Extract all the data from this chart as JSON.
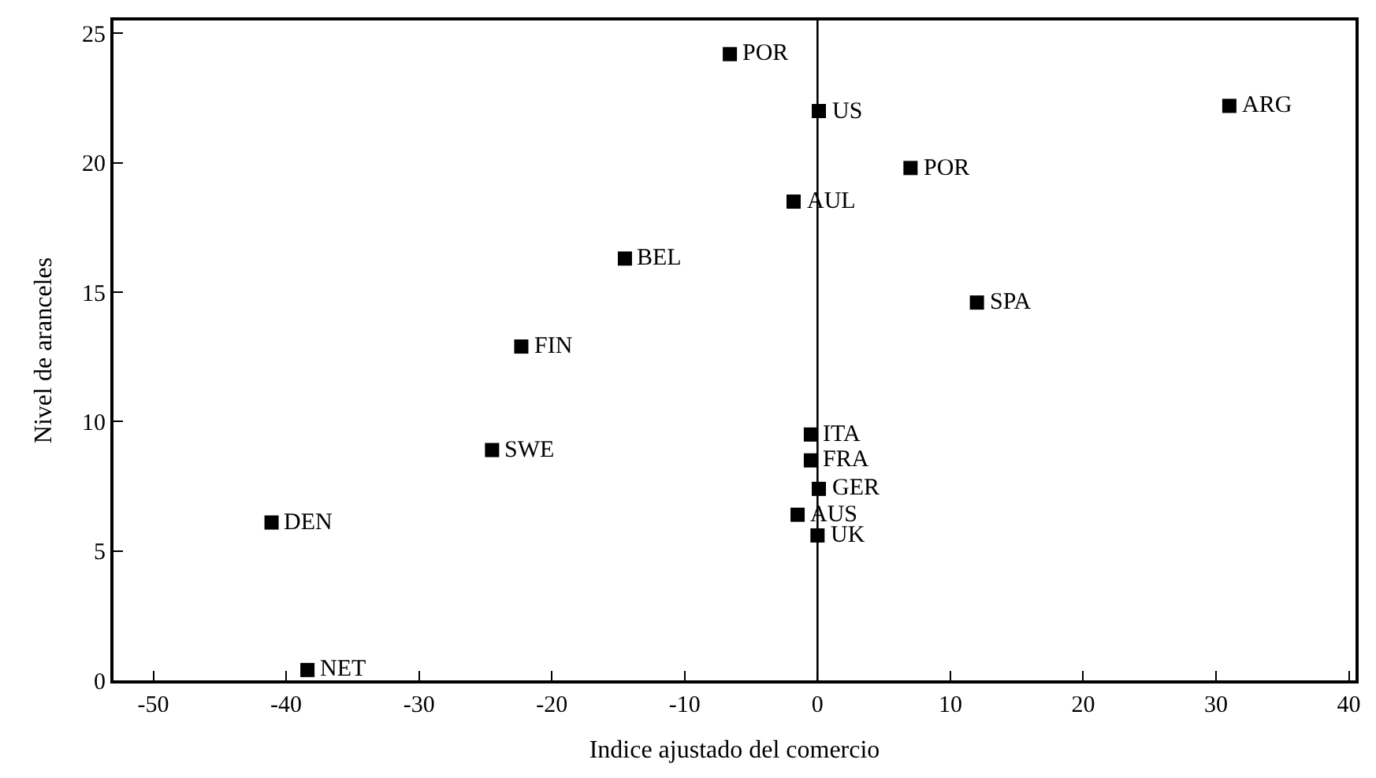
{
  "chart_data": {
    "type": "scatter",
    "xlabel": "Indice ajustado del comercio",
    "ylabel": "Nivel de aranceles",
    "x": [
      -6.6,
      0.1,
      31,
      7.0,
      -1.8,
      12.0,
      -0.5,
      -0.5,
      0.1,
      -1.5,
      0.0,
      -14.5,
      -22.3,
      -24.5,
      -41.1,
      -38.4
    ],
    "series": [
      {
        "color": "#000000",
        "values": [
          24.2,
          22.0,
          22.2,
          19.8,
          18.5,
          14.6,
          9.5,
          8.5,
          7.4,
          6.4,
          5.6,
          16.3,
          12.9,
          8.9,
          6.1,
          0.4
        ]
      }
    ],
    "annotations": [
      {
        "text": "POR",
        "x": -6.6,
        "y": 24.2
      },
      {
        "text": "US",
        "x": 0.1,
        "y": 22.0
      },
      {
        "text": "ARG",
        "x": 31,
        "y": 22.2
      },
      {
        "text": "POR",
        "x": 7.0,
        "y": 19.8
      },
      {
        "text": "AUL",
        "x": -1.8,
        "y": 18.5
      },
      {
        "text": "SPA",
        "x": 12.0,
        "y": 14.6
      },
      {
        "text": "ITA",
        "x": -0.5,
        "y": 9.5
      },
      {
        "text": "FRA",
        "x": -0.5,
        "y": 8.5
      },
      {
        "text": "GER",
        "x": 0.1,
        "y": 7.4
      },
      {
        "text": "AUS",
        "x": -1.5,
        "y": 6.4
      },
      {
        "text": "UK",
        "x": 0.0,
        "y": 5.6
      },
      {
        "text": "BEL",
        "x": -14.5,
        "y": 16.3
      },
      {
        "text": "FIN",
        "x": -22.3,
        "y": 12.9
      },
      {
        "text": "SWE",
        "x": -24.5,
        "y": 8.9
      },
      {
        "text": "DEN",
        "x": -41.1,
        "y": 6.1
      },
      {
        "text": "NET",
        "x": -38.4,
        "y": 0.4
      }
    ],
    "ref_lines": [
      {
        "axis": "x",
        "value": 0,
        "color": "#000000"
      }
    ],
    "xlim": [
      -53,
      40.5
    ],
    "xticks": [
      -50,
      -40,
      -30,
      -20,
      -10,
      0,
      10,
      20,
      30,
      40
    ],
    "ylim": [
      0,
      25.5
    ],
    "yticks": [
      0,
      5,
      10,
      15,
      20,
      25
    ],
    "marker": "square"
  }
}
